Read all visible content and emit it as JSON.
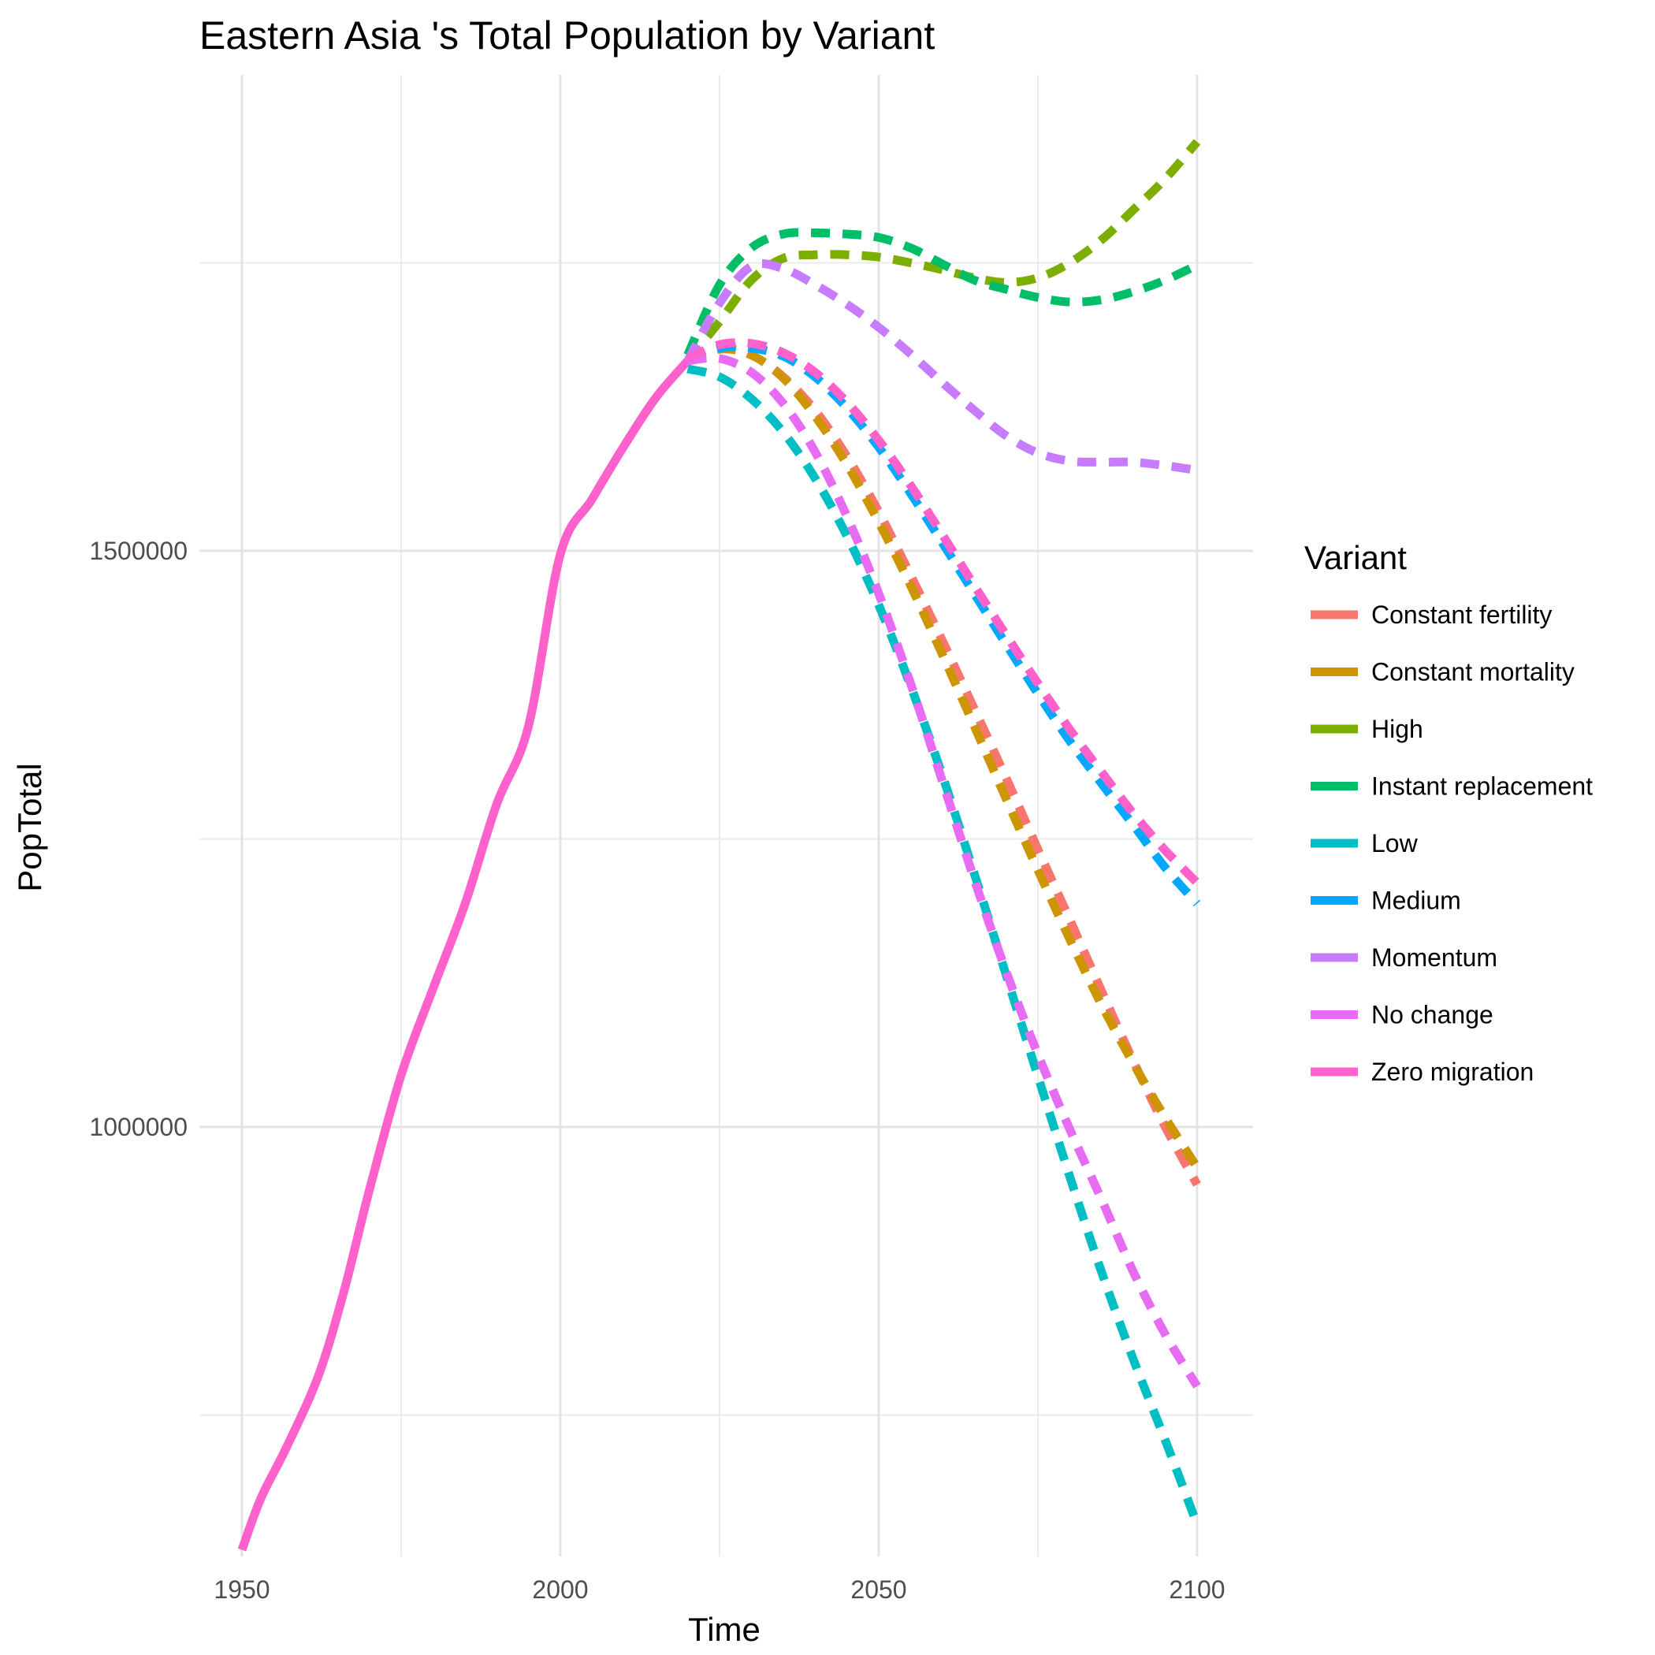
{
  "chart_data": {
    "type": "line",
    "title": "Eastern Asia 's Total Population by Variant",
    "xlabel": "Time",
    "ylabel": "PopTotal",
    "xlim": [
      1950,
      2100
    ],
    "ylim": [
      630000,
      1850000
    ],
    "x_ticks": [
      1950,
      2000,
      2050,
      2100
    ],
    "x_tick_labels": [
      "1950",
      "2000",
      "2050",
      "2100"
    ],
    "y_ticks": [
      1000000,
      1500000
    ],
    "y_tick_labels": [
      "1000000",
      "1500000"
    ],
    "grid": true,
    "legend": {
      "title": "Variant",
      "position": "right"
    },
    "estimates": {
      "x": [
        1950,
        1953,
        1957,
        1962,
        1966,
        1970,
        1975,
        1980,
        1985,
        1990,
        1995,
        2000,
        2005,
        2010,
        2015,
        2020
      ],
      "values": [
        633000,
        678000,
        722000,
        784000,
        857000,
        945000,
        1045000,
        1120000,
        1193000,
        1280000,
        1348000,
        1497000,
        1545000,
        1591000,
        1633000,
        1665000
      ]
    },
    "series": [
      {
        "name": "Constant fertility",
        "color": "#F8766D",
        "x": [
          2020,
          2025,
          2030,
          2035,
          2040,
          2045,
          2050,
          2055,
          2060,
          2065,
          2070,
          2075,
          2080,
          2085,
          2090,
          2095,
          2100
        ],
        "values": [
          1665000,
          1676000,
          1670000,
          1651000,
          1622000,
          1582000,
          1534000,
          1479000,
          1422000,
          1363000,
          1303000,
          1241000,
          1180000,
          1118000,
          1057000,
          1000000,
          950000
        ]
      },
      {
        "name": "Constant mortality",
        "color": "#CD9600",
        "x": [
          2020,
          2025,
          2030,
          2035,
          2040,
          2045,
          2050,
          2055,
          2060,
          2065,
          2070,
          2075,
          2080,
          2085,
          2090,
          2095,
          2100
        ],
        "values": [
          1665000,
          1675000,
          1670000,
          1650000,
          1617000,
          1575000,
          1525000,
          1470000,
          1410000,
          1348000,
          1285000,
          1223000,
          1163000,
          1106000,
          1055000,
          1008000,
          965000
        ]
      },
      {
        "name": "High",
        "color": "#7CAE00",
        "x": [
          2020,
          2025,
          2030,
          2035,
          2040,
          2045,
          2050,
          2055,
          2060,
          2065,
          2070,
          2075,
          2080,
          2085,
          2090,
          2095,
          2100
        ],
        "values": [
          1665000,
          1699000,
          1735000,
          1754000,
          1757000,
          1757000,
          1755000,
          1750000,
          1744000,
          1737000,
          1733000,
          1737000,
          1750000,
          1770000,
          1796000,
          1823000,
          1855000
        ]
      },
      {
        "name": "Instant replacement",
        "color": "#00BE67",
        "x": [
          2020,
          2025,
          2030,
          2035,
          2040,
          2045,
          2050,
          2055,
          2060,
          2065,
          2070,
          2075,
          2080,
          2085,
          2090,
          2095,
          2100
        ],
        "values": [
          1670000,
          1731000,
          1763000,
          1775000,
          1776000,
          1775000,
          1772000,
          1763000,
          1749000,
          1735000,
          1727000,
          1720000,
          1716000,
          1718000,
          1725000,
          1735000,
          1748000
        ]
      },
      {
        "name": "Low",
        "color": "#00BFC4",
        "x": [
          2020,
          2025,
          2030,
          2035,
          2040,
          2045,
          2050,
          2055,
          2060,
          2065,
          2070,
          2075,
          2080,
          2085,
          2090,
          2095,
          2100
        ],
        "values": [
          1658000,
          1651000,
          1632000,
          1603000,
          1563000,
          1513000,
          1453000,
          1383000,
          1305000,
          1220000,
          1132000,
          1044000,
          957000,
          874000,
          798000,
          728000,
          655000
        ]
      },
      {
        "name": "Medium",
        "color": "#00A9FF",
        "x": [
          2020,
          2025,
          2030,
          2035,
          2040,
          2045,
          2050,
          2055,
          2060,
          2065,
          2070,
          2075,
          2080,
          2085,
          2090,
          2095,
          2100
        ],
        "values": [
          1665000,
          1676000,
          1676000,
          1669000,
          1651000,
          1624000,
          1590000,
          1550000,
          1507000,
          1463000,
          1419000,
          1376000,
          1335000,
          1298000,
          1262000,
          1225000,
          1194000
        ]
      },
      {
        "name": "Momentum",
        "color": "#C77CFF",
        "x": [
          2020,
          2025,
          2030,
          2035,
          2040,
          2045,
          2050,
          2055,
          2060,
          2065,
          2070,
          2075,
          2080,
          2085,
          2090,
          2095,
          2100
        ],
        "values": [
          1665000,
          1715000,
          1747000,
          1745000,
          1731000,
          1714000,
          1694000,
          1671000,
          1646000,
          1622000,
          1600000,
          1585000,
          1578000,
          1577000,
          1577000,
          1574000,
          1570000
        ]
      },
      {
        "name": "No change",
        "color": "#E76BF3",
        "x": [
          2020,
          2025,
          2030,
          2035,
          2040,
          2045,
          2050,
          2055,
          2060,
          2065,
          2070,
          2075,
          2080,
          2085,
          2090,
          2095,
          2100
        ],
        "values": [
          1665000,
          1667000,
          1655000,
          1628000,
          1586000,
          1530000,
          1463000,
          1385000,
          1300000,
          1215000,
          1135000,
          1063000,
          998000,
          937000,
          874000,
          820000,
          775000
        ]
      },
      {
        "name": "Zero migration",
        "color": "#FF61CC",
        "x": [
          2020,
          2025,
          2030,
          2035,
          2040,
          2045,
          2050,
          2055,
          2060,
          2065,
          2070,
          2075,
          2080,
          2085,
          2090,
          2095,
          2100
        ],
        "values": [
          1667000,
          1679000,
          1680000,
          1672000,
          1655000,
          1629000,
          1596000,
          1557000,
          1514000,
          1470000,
          1427000,
          1385000,
          1345000,
          1308000,
          1272000,
          1240000,
          1212000
        ]
      }
    ]
  }
}
